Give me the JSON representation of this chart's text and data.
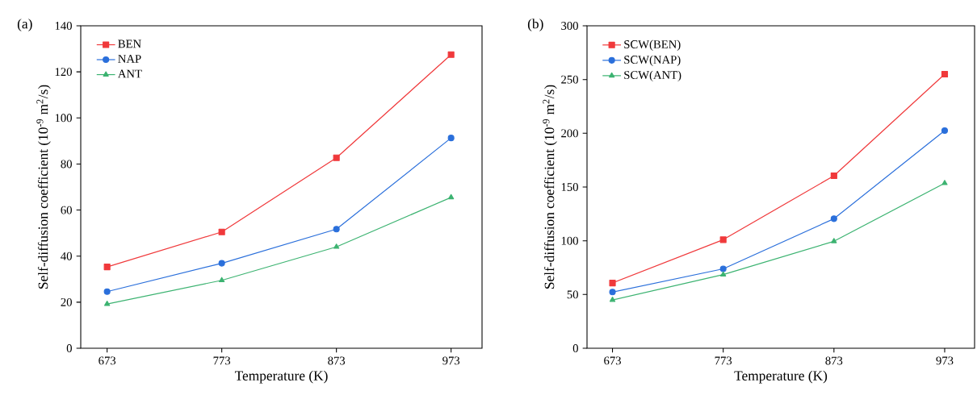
{
  "chart_data": [
    {
      "type": "line",
      "annotations": [
        "(a)"
      ],
      "xlabel": "Temperature (K)",
      "ylabel": "Self-diffusion coefficient (10$^{-9}$ m$^{2}$/s)",
      "x": [
        673,
        773,
        873,
        973
      ],
      "xlim": [
        650,
        1000
      ],
      "xticks": [
        673,
        773,
        873,
        973
      ],
      "ylim": [
        0,
        140
      ],
      "yticks": [
        0,
        20,
        40,
        60,
        80,
        100,
        120,
        140
      ],
      "legend": "top left",
      "line_style": "solid",
      "series": [
        {
          "name": "BEN",
          "color": "#f0393b",
          "marker": "square",
          "values": [
            35.3,
            50.5,
            82.7,
            127.5
          ]
        },
        {
          "name": "NAP",
          "color": "#2a6fdb",
          "marker": "circle",
          "values": [
            24.6,
            36.9,
            51.7,
            91.3
          ]
        },
        {
          "name": "ANT",
          "color": "#3cb371",
          "marker": "triangle",
          "values": [
            19.2,
            29.5,
            44.0,
            65.5
          ]
        }
      ]
    },
    {
      "type": "line",
      "annotations": [
        "(b)"
      ],
      "xlabel": "Temperature (K)",
      "ylabel": "Self-diffusion coefficient (10$^{-9}$ m$^{2}$/s)",
      "x": [
        673,
        773,
        873,
        973
      ],
      "xlim": [
        650,
        1000
      ],
      "xticks": [
        673,
        773,
        873,
        973
      ],
      "ylim": [
        0,
        300
      ],
      "yticks": [
        0,
        50,
        100,
        150,
        200,
        250,
        300
      ],
      "legend": "top left",
      "line_style": "solid",
      "series": [
        {
          "name": "SCW(BEN)",
          "color": "#f0393b",
          "marker": "square",
          "values": [
            60.7,
            101,
            160.5,
            255
          ]
        },
        {
          "name": "SCW(NAP)",
          "color": "#2a6fdb",
          "marker": "circle",
          "values": [
            52.3,
            73.9,
            120.5,
            202.5
          ]
        },
        {
          "name": "SCW(ANT)",
          "color": "#3cb371",
          "marker": "triangle",
          "values": [
            44.9,
            68.5,
            99.5,
            153.6
          ]
        }
      ]
    }
  ]
}
